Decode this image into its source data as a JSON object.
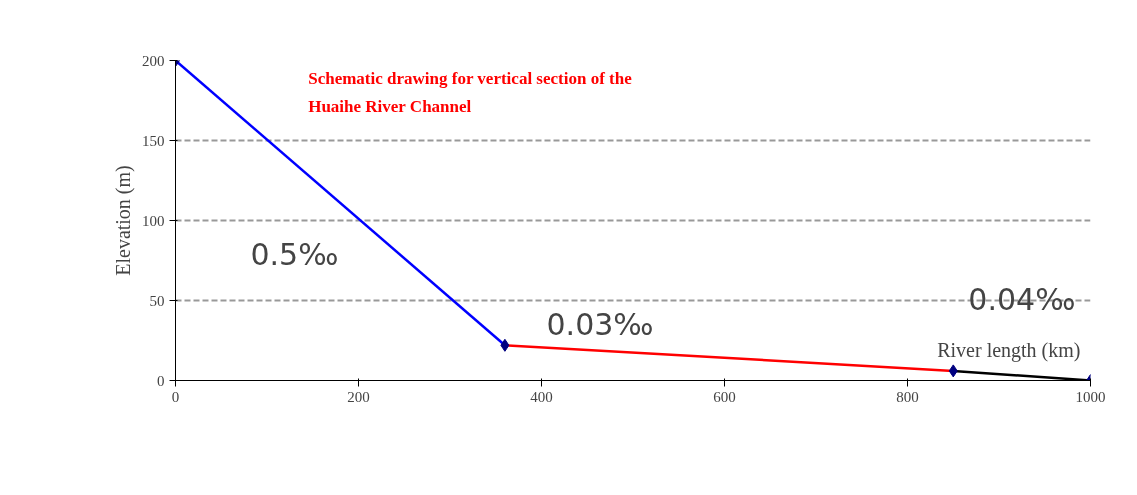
{
  "chart_data": {
    "type": "line",
    "title": "Schematic drawing for vertical section of the\nHuaihe River Channel",
    "xlabel": "River length (km)",
    "ylabel": "Elevation (m)",
    "series": [
      {
        "color": "#0000ff",
        "x": [
          0,
          360
        ],
        "values": [
          200,
          22
        ]
      },
      {
        "color": "#ff0000",
        "x": [
          360,
          850
        ],
        "values": [
          22,
          6
        ]
      },
      {
        "color": "#000000",
        "x": [
          850,
          1000
        ],
        "values": [
          6,
          0
        ]
      },
      {
        "type": "scatter",
        "color": "#000080",
        "marker": "diamond",
        "x": [
          0,
          360,
          850,
          1000
        ],
        "values": [
          200,
          22,
          6,
          0
        ]
      }
    ],
    "annotations": [
      "0.5‰",
      "0.03‰",
      "0.04‰"
    ],
    "xlim": [
      0,
      1000
    ],
    "xticks": [
      0,
      200,
      400,
      600,
      800,
      1000
    ],
    "ylim": [
      0,
      200
    ],
    "yticks": [
      0,
      50,
      100,
      150,
      200
    ],
    "grid": "y",
    "marker": "none",
    "line_style": "solid"
  }
}
